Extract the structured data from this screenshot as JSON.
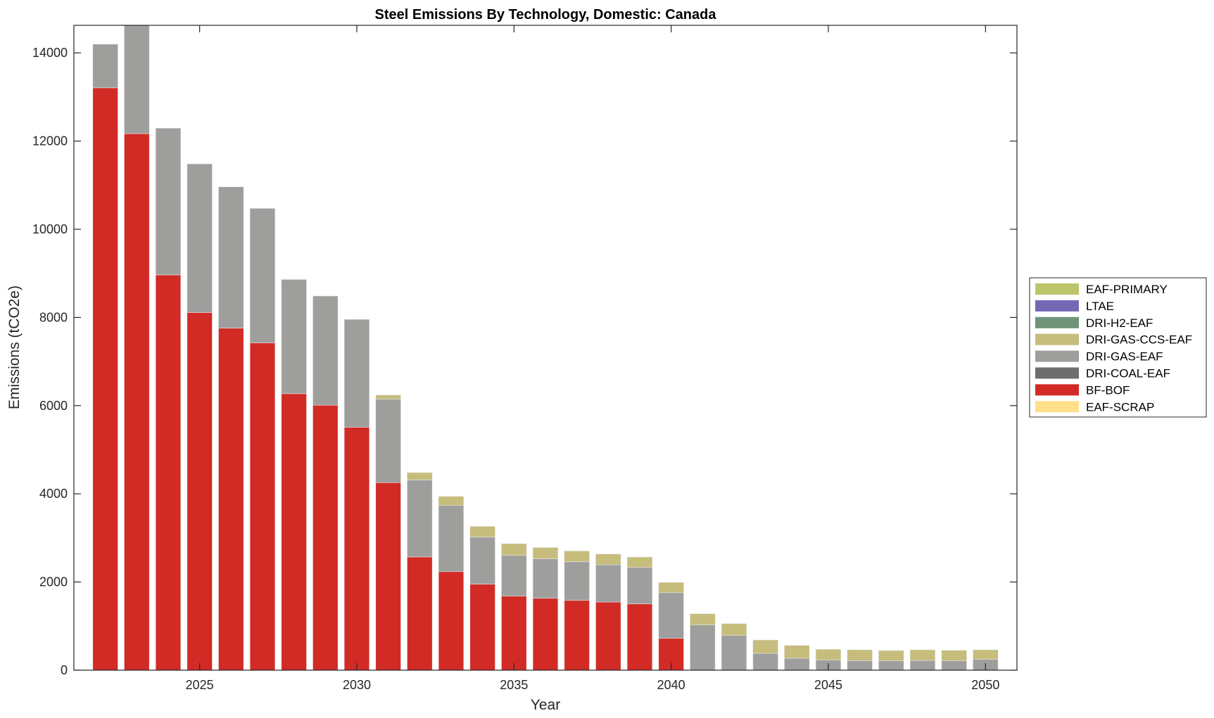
{
  "chart_data": {
    "type": "bar",
    "stacked": true,
    "title": "Steel Emissions By Technology, Domestic: Canada",
    "xlabel": "Year",
    "ylabel": "Emissions (tCO2e)",
    "xlim": [
      2021,
      2051
    ],
    "ylim": [
      0,
      14625
    ],
    "xticks": [
      2025,
      2030,
      2035,
      2040,
      2045,
      2050
    ],
    "yticks": [
      0,
      2000,
      4000,
      6000,
      8000,
      10000,
      12000,
      14000
    ],
    "grid": false,
    "legend_position": "outside-right",
    "x": [
      2022,
      2023,
      2024,
      2025,
      2026,
      2027,
      2028,
      2029,
      2030,
      2031,
      2032,
      2033,
      2034,
      2035,
      2036,
      2037,
      2038,
      2039,
      2040,
      2041,
      2042,
      2043,
      2044,
      2045,
      2046,
      2047,
      2048,
      2049,
      2050
    ],
    "series": [
      {
        "name": "EAF-SCRAP",
        "color": "#FFE08A",
        "values": [
          0,
          0,
          0,
          0,
          0,
          0,
          0,
          0,
          0,
          0,
          0,
          0,
          0,
          0,
          0,
          0,
          0,
          0,
          0,
          0,
          0,
          0,
          0,
          0,
          0,
          0,
          0,
          0,
          0
        ]
      },
      {
        "name": "BF-BOF",
        "color": "#D22B26",
        "values": [
          13208,
          12168,
          8965,
          8112,
          7758,
          7425,
          6271,
          6011,
          5512,
          4254,
          2569,
          2236,
          1950,
          1679,
          1631,
          1583,
          1546,
          1503,
          722,
          0,
          0,
          0,
          0,
          0,
          0,
          0,
          0,
          0,
          0
        ]
      },
      {
        "name": "DRI-COAL-EAF",
        "color": "#6E6E6E",
        "values": [
          0,
          0,
          0,
          0,
          0,
          0,
          0,
          0,
          0,
          0,
          0,
          0,
          0,
          0,
          0,
          0,
          0,
          0,
          0,
          0,
          0,
          0,
          0,
          0,
          0,
          0,
          0,
          0,
          0
        ]
      },
      {
        "name": "DRI-GAS-EAF",
        "color": "#9E9E9C",
        "values": [
          988,
          2500,
          3328,
          3370,
          3204,
          3048,
          2590,
          2475,
          2444,
          1893,
          1747,
          1500,
          1067,
          924,
          897,
          876,
          844,
          829,
          1036,
          1025,
          786,
          382,
          271,
          228,
          218,
          212,
          223,
          212,
          244
        ]
      },
      {
        "name": "DRI-GAS-CCS-EAF",
        "color": "#C6BC7C",
        "values": [
          0,
          0,
          0,
          0,
          0,
          0,
          0,
          0,
          0,
          93,
          166,
          206,
          245,
          266,
          255,
          245,
          245,
          234,
          234,
          255,
          271,
          303,
          292,
          245,
          244,
          234,
          239,
          240,
          218
        ]
      },
      {
        "name": "DRI-H2-EAF",
        "color": "#6F9479",
        "values": [
          0,
          0,
          0,
          0,
          0,
          0,
          0,
          0,
          0,
          0,
          0,
          0,
          0,
          0,
          0,
          0,
          0,
          0,
          0,
          0,
          0,
          0,
          0,
          0,
          0,
          0,
          0,
          0,
          0
        ]
      },
      {
        "name": "LTAE",
        "color": "#7468B6",
        "values": [
          0,
          0,
          0,
          0,
          0,
          0,
          0,
          0,
          0,
          0,
          0,
          0,
          0,
          0,
          0,
          0,
          0,
          0,
          0,
          0,
          0,
          0,
          0,
          0,
          0,
          0,
          0,
          0,
          0
        ]
      },
      {
        "name": "EAF-PRIMARY",
        "color": "#BCC56A",
        "values": [
          0,
          0,
          0,
          0,
          0,
          0,
          0,
          0,
          0,
          0,
          0,
          0,
          0,
          0,
          0,
          0,
          0,
          0,
          0,
          0,
          0,
          0,
          0,
          0,
          0,
          0,
          0,
          0,
          0
        ]
      }
    ],
    "legend_order": [
      "EAF-PRIMARY",
      "LTAE",
      "DRI-H2-EAF",
      "DRI-GAS-CCS-EAF",
      "DRI-GAS-EAF",
      "DRI-COAL-EAF",
      "BF-BOF",
      "EAF-SCRAP"
    ]
  }
}
